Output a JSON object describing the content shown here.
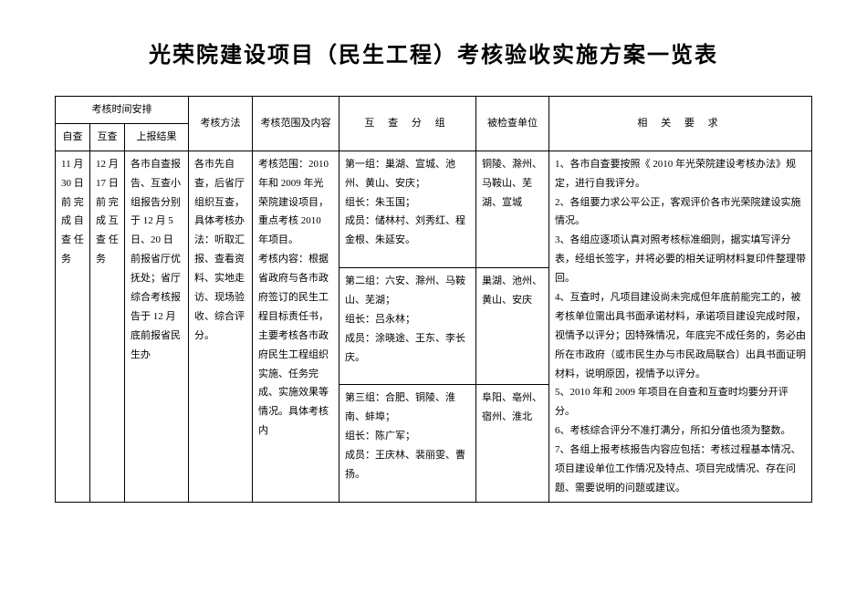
{
  "title": "光荣院建设项目（民生工程）考核验收实施方案一览表",
  "headers": {
    "time_arrange": "考核时间安排",
    "zicha": "自查",
    "hucha": "互查",
    "shangbao": "上报结果",
    "method": "考核方法",
    "scope": "考核范围及内容",
    "group": "互 查 分 组",
    "unit": "被检查单位",
    "req": "相 关 要 求"
  },
  "body": {
    "zicha": "11 月 30 日 前 完 成 自 查 任 务",
    "hucha": "12 月 17 日 前 完 成 互 查 任 务",
    "shangbao": "各市自查报告、互查小组报告分别于 12 月 5 日、20 日前报省厅优抚处；省厅综合考核报告于 12 月底前报省民生办",
    "method": "各市先自查，后省厅组织互查，具体考核办法：听取汇报、查看资料、实地走访、现场验收、综合评分。",
    "scope": "考核范围：2010 年和 2009 年光荣院建设项目，重点考核 2010 年项目。\n考核内容：根据省政府与各市政府签订的民生工程目标责任书，主要考核各市政府民生工程组织实施、任务完成、实施效果等情况。具体考核内",
    "group1": "第一组：巢湖、宣城、池州、黄山、安庆；\n组长：朱玉国；\n成员：储林村、刘秀红、程金根、朱延安。",
    "unit1": "铜陵、滁州、马鞍山、芜湖、宣城",
    "group2": "第二组：六安、滁州、马鞍山、芜湖；\n组长：吕永林；\n成员：涂晓途、王东、李长庆。",
    "unit2": "巢湖、池州、黄山、安庆",
    "group3": "第三组：合肥、铜陵、淮南、蚌埠；\n组长：陈广军；\n成员：王庆林、裴丽雯、曹扬。",
    "unit3": "阜阳、亳州、宿州、淮北",
    "req": "1、各市自查要按照《 2010 年光荣院建设考核办法》规定，进行自我评分。\n2、各组要力求公平公正，客观评价各市光荣院建设实施情况。\n3、各组应逐项认真对照考核标准细则，据实填写评分表，经组长签字，并将必要的相关证明材料复印件整理带回。\n4、互查时，凡项目建设尚未完成但年底前能完工的，被考核单位需出具书面承诺材料，承诺项目建设完成时限，视情予以评分；因特殊情况，年底完不成任务的，务必由所在市政府（或市民生办与市民政局联合）出具书面证明材料，说明原因，视情予以评分。\n5、2010 年和 2009 年项目在自查和互查时均要分开评分。\n6、考核综合评分不准打满分，所扣分值也须为整数。\n7、各组上报考核报告内容应包括：考核过程基本情况、项目建设单位工作情况及特点、项目完成情况、存在问题、需要说明的问题或建议。"
  }
}
